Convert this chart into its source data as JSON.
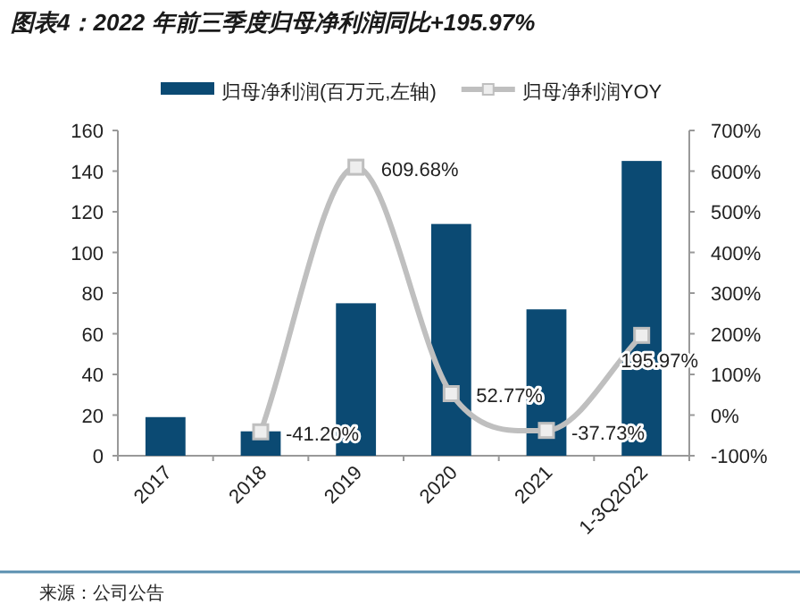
{
  "chart_data": {
    "type": "bar",
    "title": "图表4：2022 年前三季度归母净利润同比+195.97%",
    "categories": [
      "2017",
      "2018",
      "2019",
      "2020",
      "2021",
      "1-3Q2022"
    ],
    "series": [
      {
        "name": "归母净利润(百万元,左轴)",
        "color": "#0b4a73",
        "values": [
          19,
          12,
          75,
          114,
          72,
          145
        ]
      },
      {
        "name": "归母净利润YOY",
        "type": "line",
        "axis": "y2",
        "color": "#bfbfbf",
        "marker": "square",
        "values": [
          null,
          -41.2,
          609.68,
          52.77,
          -37.73,
          195.97
        ],
        "value_labels": [
          null,
          "-41.20%",
          "609.68%",
          "52.77%",
          "-37.73%",
          "195.97%"
        ]
      }
    ],
    "ylim": [
      0,
      160
    ],
    "yticks": [
      0,
      20,
      40,
      60,
      80,
      100,
      120,
      140,
      160
    ],
    "y2lim": [
      -100,
      700
    ],
    "y2ticks": [
      {
        "value": -100,
        "label": "-100%"
      },
      {
        "value": 0,
        "label": "0%"
      },
      {
        "value": 100,
        "label": "100%"
      },
      {
        "value": 200,
        "label": "200%"
      },
      {
        "value": 300,
        "label": "300%"
      },
      {
        "value": 400,
        "label": "400%"
      },
      {
        "value": 500,
        "label": "500%"
      },
      {
        "value": 600,
        "label": "600%"
      },
      {
        "value": 700,
        "label": "700%"
      }
    ],
    "grid": false,
    "legend": "top",
    "annotations": [
      "来源：公司公告"
    ]
  }
}
